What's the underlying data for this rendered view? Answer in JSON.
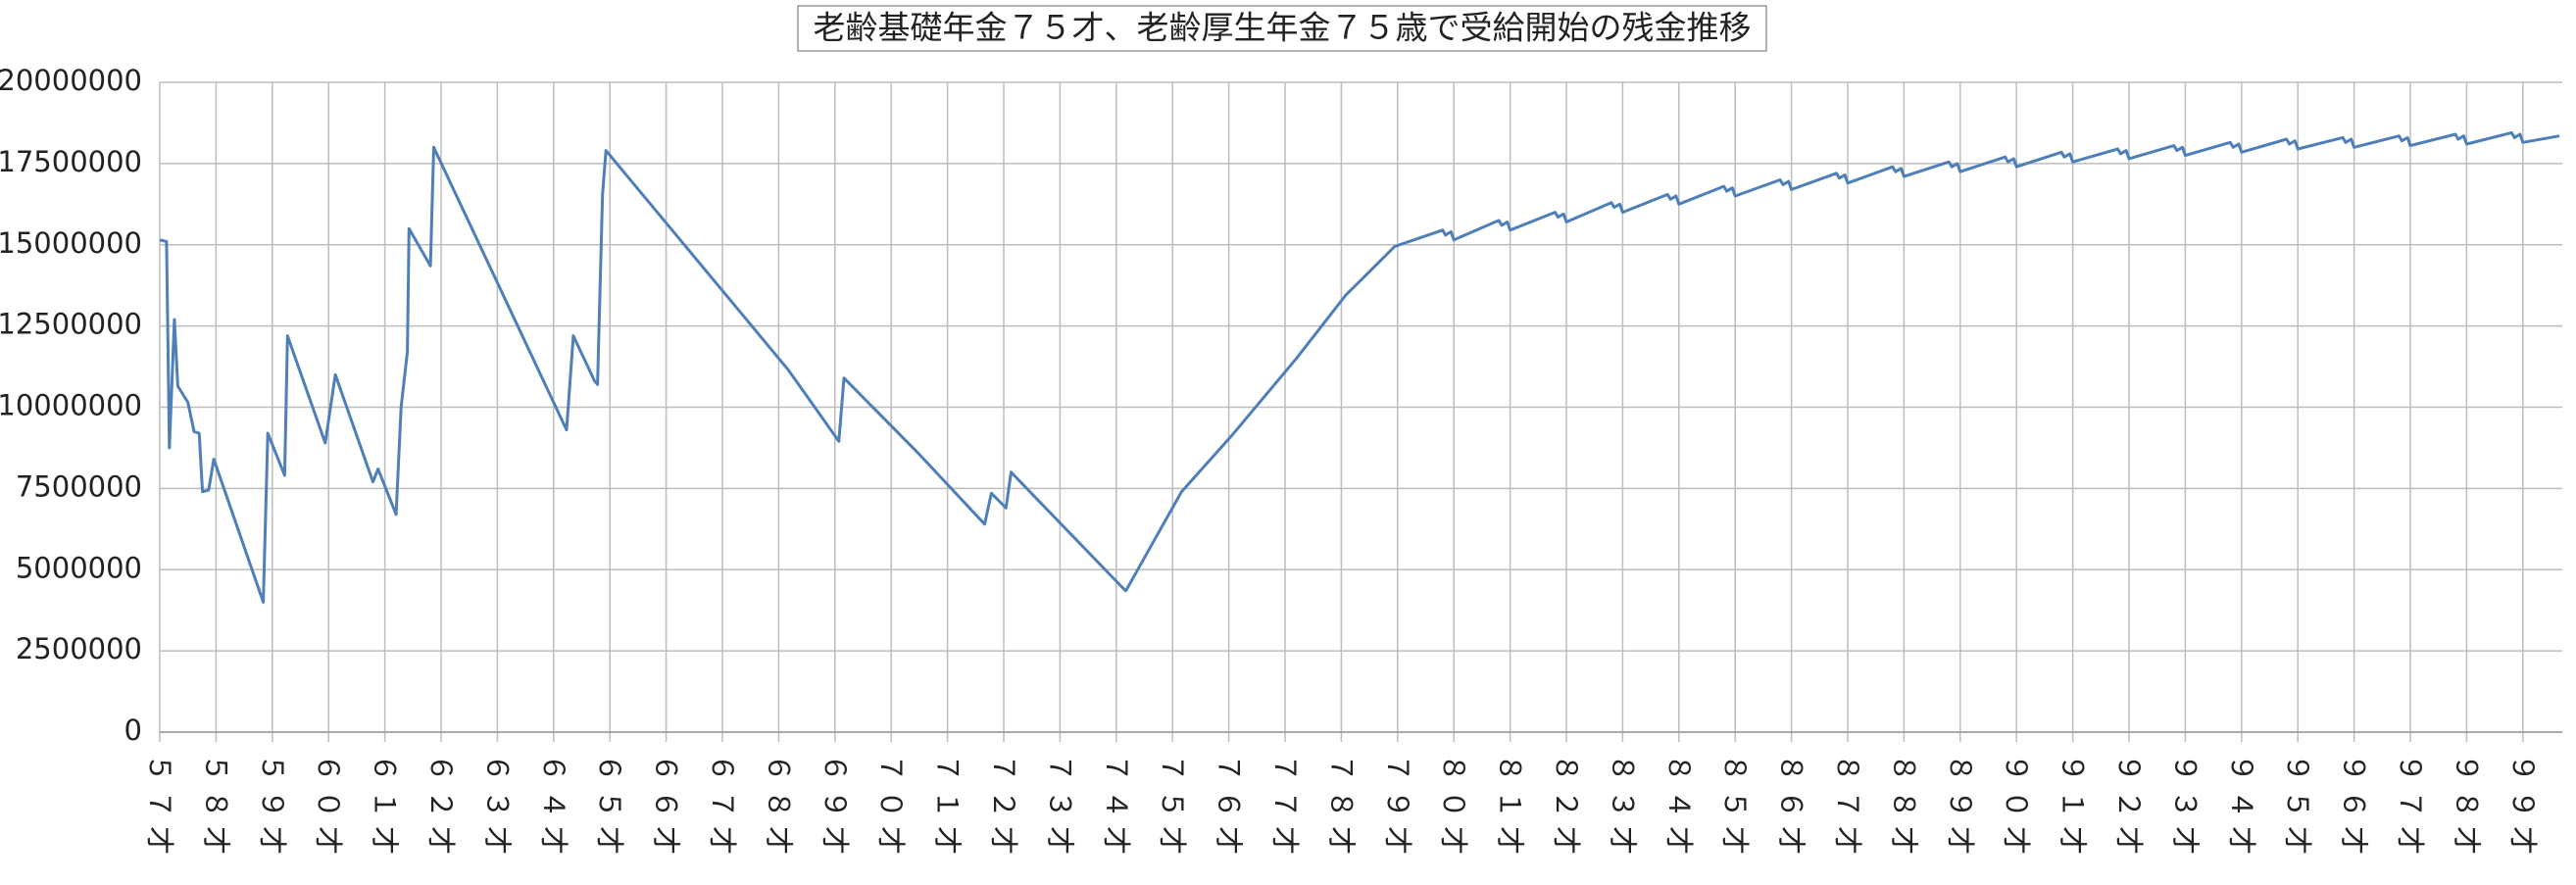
{
  "chart_data": {
    "type": "line",
    "title": "老齢基礎年金７５才、老齢厚生年金７５歳で受給開始の残金推移",
    "x": [
      57.0,
      57.12,
      57.17,
      57.26,
      57.32,
      57.5,
      57.61,
      57.7,
      57.76,
      57.87,
      57.96,
      58.84,
      58.92,
      59.22,
      59.27,
      59.94,
      60.12,
      60.79,
      60.88,
      61.2,
      61.29,
      61.4,
      61.43,
      61.81,
      61.87,
      64.23,
      64.35,
      64.73,
      64.78,
      64.87,
      64.93,
      68.17,
      69.07,
      69.16,
      70.5,
      71.66,
      71.78,
      72.04,
      72.13,
      72.63,
      74.11,
      74.17,
      75.16,
      76.04,
      77.2,
      78.08,
      78.95,
      79.8,
      79.85,
      79.95,
      80.0,
      80.8,
      80.85,
      80.95,
      81.0,
      81.8,
      81.85,
      81.95,
      82.0,
      82.8,
      82.85,
      82.95,
      83.0,
      83.8,
      83.85,
      83.95,
      84.0,
      84.8,
      84.85,
      84.95,
      85.0,
      85.8,
      85.85,
      85.95,
      86.0,
      86.8,
      86.85,
      86.95,
      87.0,
      87.8,
      87.85,
      87.95,
      88.0,
      88.8,
      88.85,
      88.95,
      89.0,
      89.8,
      89.85,
      89.95,
      90.0,
      90.8,
      90.85,
      90.95,
      91.0,
      91.8,
      91.85,
      91.95,
      92.0,
      92.8,
      92.85,
      92.95,
      93.0,
      93.8,
      93.85,
      93.95,
      94.0,
      94.8,
      94.85,
      94.95,
      95.0,
      95.8,
      95.85,
      95.95,
      96.0,
      96.8,
      96.85,
      96.95,
      97.0,
      97.8,
      97.85,
      97.95,
      98.0,
      98.8,
      98.85,
      98.95,
      99.0,
      99.65
    ],
    "series": [
      {
        "color": "#4f7fb8",
        "values": [
          15150000,
          15100000,
          8750000,
          12700000,
          10650000,
          10150000,
          9250000,
          9200000,
          7400000,
          7450000,
          8400000,
          4000000,
          9200000,
          7900000,
          12200000,
          8900000,
          11000000,
          7700000,
          8100000,
          6700000,
          10000000,
          11700000,
          15500000,
          14350000,
          18000000,
          9300000,
          12200000,
          10800000,
          10700000,
          16550000,
          17900000,
          11150000,
          8950000,
          10900000,
          8550000,
          6400000,
          7350000,
          6900000,
          8000000,
          7100000,
          4450000,
          4350000,
          7400000,
          9100000,
          11500000,
          13450000,
          14950000,
          15450000,
          15300000,
          15400000,
          15150000,
          15750000,
          15600000,
          15700000,
          15450000,
          16000000,
          15850000,
          15950000,
          15700000,
          16300000,
          16150000,
          16250000,
          16000000,
          16550000,
          16400000,
          16500000,
          16250000,
          16800000,
          16650000,
          16750000,
          16500000,
          17000000,
          16850000,
          16950000,
          16700000,
          17200000,
          17050000,
          17150000,
          16900000,
          17400000,
          17250000,
          17350000,
          17100000,
          17550000,
          17400000,
          17500000,
          17250000,
          17700000,
          17550000,
          17650000,
          17400000,
          17850000,
          17700000,
          17800000,
          17550000,
          17950000,
          17800000,
          17900000,
          17650000,
          18050000,
          17900000,
          18000000,
          17750000,
          18150000,
          18000000,
          18100000,
          17850000,
          18250000,
          18100000,
          18200000,
          17950000,
          18300000,
          18150000,
          18250000,
          18000000,
          18350000,
          18200000,
          18300000,
          18050000,
          18400000,
          18250000,
          18350000,
          18100000,
          18450000,
          18300000,
          18400000,
          18150000,
          18350000
        ]
      }
    ],
    "xlim": [
      57,
      99.7
    ],
    "xticks": [
      {
        "value": 57,
        "label": "５７才"
      },
      {
        "value": 58,
        "label": "５８才"
      },
      {
        "value": 59,
        "label": "５９才"
      },
      {
        "value": 60,
        "label": "６０才"
      },
      {
        "value": 61,
        "label": "６１才"
      },
      {
        "value": 62,
        "label": "６２才"
      },
      {
        "value": 63,
        "label": "６３才"
      },
      {
        "value": 64,
        "label": "６４才"
      },
      {
        "value": 65,
        "label": "６５才"
      },
      {
        "value": 66,
        "label": "６６才"
      },
      {
        "value": 67,
        "label": "６７才"
      },
      {
        "value": 68,
        "label": "６８才"
      },
      {
        "value": 69,
        "label": "６９才"
      },
      {
        "value": 70,
        "label": "７０才"
      },
      {
        "value": 71,
        "label": "７１才"
      },
      {
        "value": 72,
        "label": "７２才"
      },
      {
        "value": 73,
        "label": "７３才"
      },
      {
        "value": 74,
        "label": "７４才"
      },
      {
        "value": 75,
        "label": "７５才"
      },
      {
        "value": 76,
        "label": "７６才"
      },
      {
        "value": 77,
        "label": "７７才"
      },
      {
        "value": 78,
        "label": "７８才"
      },
      {
        "value": 79,
        "label": "７９才"
      },
      {
        "value": 80,
        "label": "８０才"
      },
      {
        "value": 81,
        "label": "８１才"
      },
      {
        "value": 82,
        "label": "８２才"
      },
      {
        "value": 83,
        "label": "８３才"
      },
      {
        "value": 84,
        "label": "８４才"
      },
      {
        "value": 85,
        "label": "８５才"
      },
      {
        "value": 86,
        "label": "８６才"
      },
      {
        "value": 87,
        "label": "８７才"
      },
      {
        "value": 88,
        "label": "８８才"
      },
      {
        "value": 89,
        "label": "８９才"
      },
      {
        "value": 90,
        "label": "９０才"
      },
      {
        "value": 91,
        "label": "９１才"
      },
      {
        "value": 92,
        "label": "９２才"
      },
      {
        "value": 93,
        "label": "９３才"
      },
      {
        "value": 94,
        "label": "９４才"
      },
      {
        "value": 95,
        "label": "９５才"
      },
      {
        "value": 96,
        "label": "９６才"
      },
      {
        "value": 97,
        "label": "９７才"
      },
      {
        "value": 98,
        "label": "９８才"
      },
      {
        "value": 99,
        "label": "９９才"
      }
    ],
    "ylim": [
      0,
      20000000
    ],
    "yticks": [
      0,
      2500000,
      5000000,
      7500000,
      10000000,
      12500000,
      15000000,
      17500000,
      20000000
    ],
    "grid": true
  }
}
